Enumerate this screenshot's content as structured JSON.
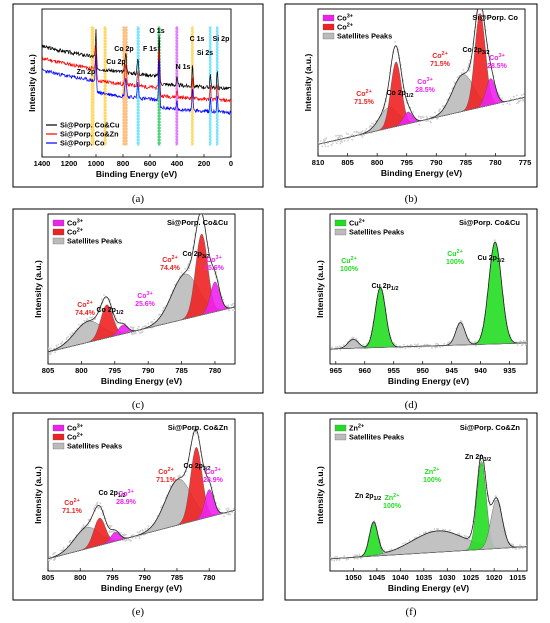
{
  "figure": {
    "panel_tags": [
      "(a)",
      "(b)",
      "(c)",
      "(d)",
      "(e)",
      "(f)"
    ]
  },
  "colors": {
    "co3": "#ee22ee",
    "co2": "#ee2222",
    "sat": "#bbbbbb",
    "green": "#22dd22",
    "spec_co": "#0000ff",
    "spec_cocu": "#000000",
    "spec_cozn": "#ff0000"
  },
  "chart_data": [
    {
      "type": "line",
      "panel": "(a)",
      "xlabel": "Binding Energy (eV)",
      "ylabel": "Intensity (a.u.)",
      "xlim": [
        1400,
        0
      ],
      "x_ticks": [
        "1400",
        "1200",
        "1000",
        "800",
        "600",
        "400",
        "200",
        "0"
      ],
      "series": [
        {
          "name": "Si@Porp. Co&Cu"
        },
        {
          "name": "Si@Porp. Co&Zn"
        },
        {
          "name": "Si@Porp. Co"
        }
      ],
      "peak_labels": [
        "Zn 2p",
        "Cu 2p",
        "Co 2p",
        "F 1s",
        "O 1s",
        "N 1s",
        "C 1s",
        "Si 2s",
        "Si 2p"
      ]
    },
    {
      "type": "area",
      "panel": "(b)",
      "title": "Si@Porp. Co",
      "xlabel": "Binding Energy (eV)",
      "ylabel": "Intensity (a.u.)",
      "xlim": [
        810,
        775
      ],
      "x_ticks": [
        "810",
        "805",
        "800",
        "795",
        "790",
        "785",
        "780",
        "775"
      ],
      "legend": [
        "Co3+",
        "Co2+",
        "Satellites Peaks"
      ],
      "peak_labels": [
        "Co 2p1/2",
        "Co 2p3/2"
      ],
      "annotations": [
        {
          "species": "Co2+",
          "percent": "71.5%"
        },
        {
          "species": "Co3+",
          "percent": "28.5%"
        },
        {
          "species": "Co2+",
          "percent": "71.5%"
        },
        {
          "species": "Co3+",
          "percent": "28.5%"
        }
      ]
    },
    {
      "type": "area",
      "panel": "(c)",
      "title": "Si@Porp. Co&Cu",
      "xlabel": "Binding Energy (eV)",
      "ylabel": "Intensity (a.u.)",
      "xlim": [
        805,
        777
      ],
      "x_ticks": [
        "805",
        "800",
        "795",
        "790",
        "785",
        "780"
      ],
      "legend": [
        "Co3+",
        "Co2+",
        "Satellites Peaks"
      ],
      "peak_labels": [
        "Co 2p1/2",
        "Co 2p3/2"
      ],
      "annotations": [
        {
          "species": "Co2+",
          "percent": "74.4%"
        },
        {
          "species": "Co3+",
          "percent": "25.6%"
        },
        {
          "species": "Co2+",
          "percent": "74.4%"
        },
        {
          "species": "Co3+",
          "percent": "25.6%"
        }
      ]
    },
    {
      "type": "area",
      "panel": "(d)",
      "title": "Si@Porp. Co&Cu",
      "xlabel": "Binding Energy (eV)",
      "ylabel": "Intensity (a.u.)",
      "xlim": [
        966,
        932
      ],
      "x_ticks": [
        "965",
        "960",
        "955",
        "950",
        "945",
        "940",
        "935"
      ],
      "legend": [
        "Cu2+",
        "Satellites Peaks"
      ],
      "peak_labels": [
        "Cu 2p1/2",
        "Cu 2p3/2"
      ],
      "annotations": [
        {
          "species": "Cu2+",
          "percent": "100%"
        },
        {
          "species": "Cu2+",
          "percent": "100%"
        }
      ]
    },
    {
      "type": "area",
      "panel": "(e)",
      "title": "Si@Porp. Co&Zn",
      "xlabel": "Binding Energy (eV)",
      "ylabel": "Intensity (a.u.)",
      "xlim": [
        805,
        776
      ],
      "x_ticks": [
        "805",
        "800",
        "795",
        "790",
        "785",
        "780"
      ],
      "legend": [
        "Co3+",
        "Co2+",
        "Satellites Peaks"
      ],
      "peak_labels": [
        "Co 2p1/2",
        "Co 2p3/2"
      ],
      "annotations": [
        {
          "species": "Co2+",
          "percent": "71.1%"
        },
        {
          "species": "Co3+",
          "percent": "28.9%"
        },
        {
          "species": "Co2+",
          "percent": "71.1%"
        },
        {
          "species": "Co3+",
          "percent": "28.9%"
        }
      ]
    },
    {
      "type": "area",
      "panel": "(f)",
      "title": "Si@Porp. Co&Zn",
      "xlabel": "Binding Energy (eV)",
      "ylabel": "Intensity (a.u.)",
      "xlim": [
        1055,
        1013
      ],
      "x_ticks": [
        "1050",
        "1045",
        "1040",
        "1035",
        "1030",
        "1025",
        "1020",
        "1015"
      ],
      "legend": [
        "Zn2+",
        "Satellites Peaks"
      ],
      "peak_labels": [
        "Zn 2p1/2",
        "Zn 2p3/2"
      ],
      "annotations": [
        {
          "species": "Zn2+",
          "percent": "100%"
        },
        {
          "species": "Zn2+",
          "percent": "100%"
        }
      ]
    }
  ]
}
